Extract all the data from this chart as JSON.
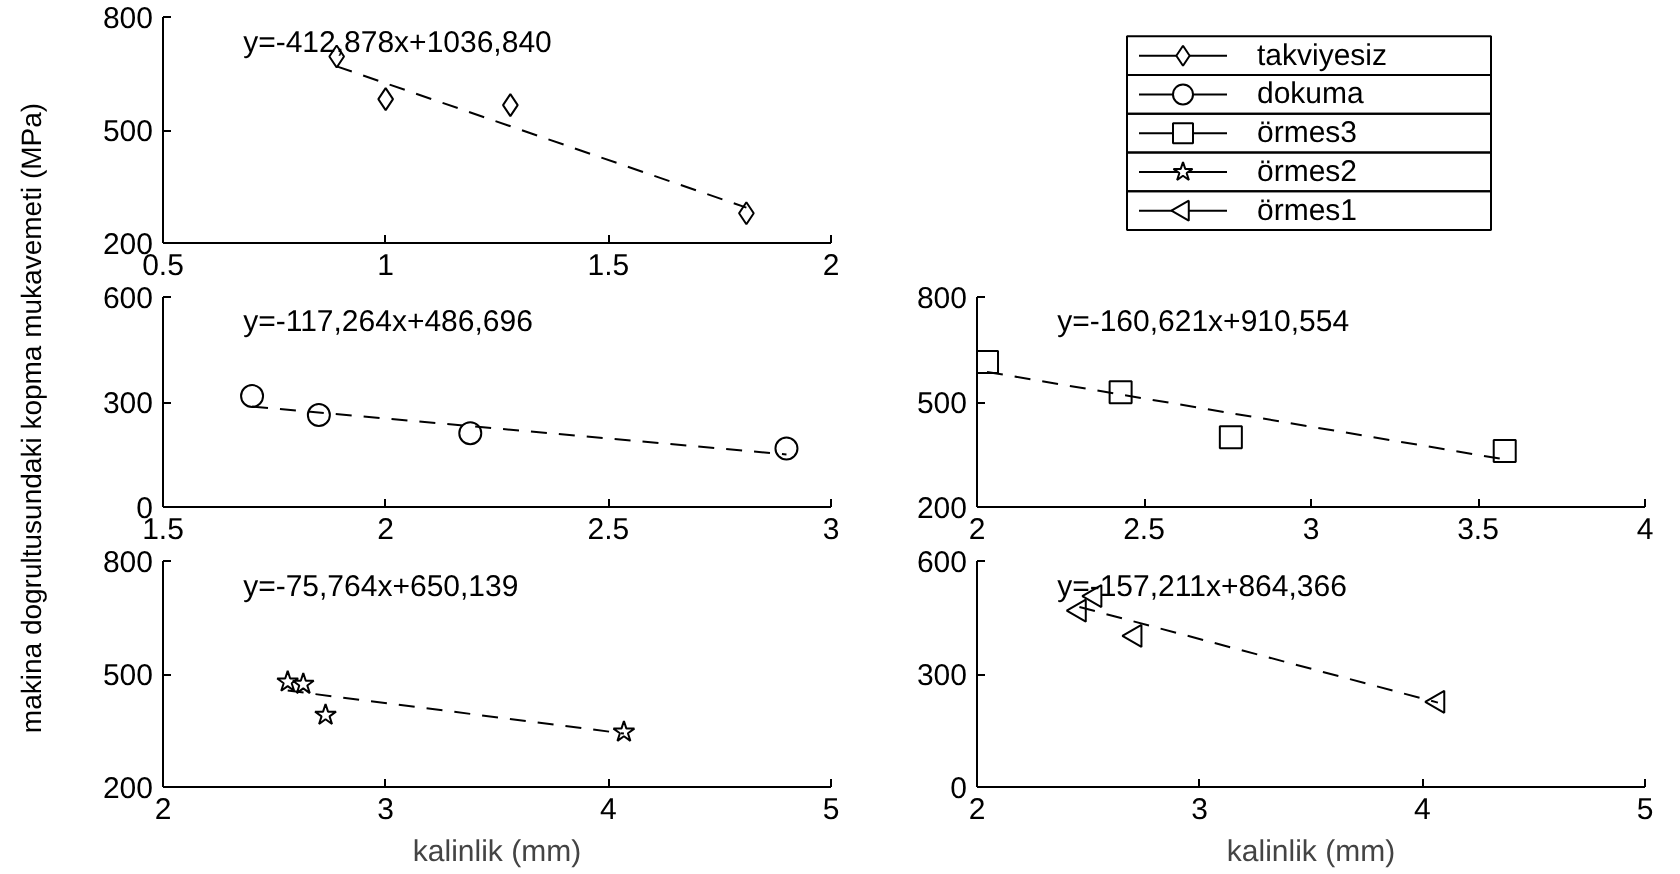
{
  "chart_data": [
    {
      "type": "scatter",
      "xlim": [
        0.5,
        2
      ],
      "ylim": [
        200,
        800
      ],
      "xticks": [
        0.5,
        1,
        1.5,
        2
      ],
      "yticks": [
        200,
        500,
        800
      ],
      "ylabel": "makina dogrultusundaki kopma mukavemeti (MPa)",
      "legend": "right",
      "annotations": [
        "y=-412,878x+1036,840"
      ],
      "series": [
        {
          "name": "takviyesiz",
          "color": "#000000",
          "marker": "diamond",
          "x": [
            0.89,
            1.0,
            1.28,
            1.81
          ],
          "values": [
            695,
            582,
            566,
            279
          ]
        },
        {
          "type": "line",
          "color": "#000000",
          "line_style": "dashed",
          "marker": "none",
          "x": [
            0.89,
            1.81
          ],
          "values": [
            669,
            294
          ]
        }
      ]
    },
    {
      "type": "scatter",
      "xlim": [
        1.5,
        3
      ],
      "ylim": [
        0,
        600
      ],
      "xticks": [
        1.5,
        2,
        2.5,
        3
      ],
      "yticks": [
        0,
        300,
        600
      ],
      "annotations": [
        "y=-117,264x+486,696"
      ],
      "series": [
        {
          "name": "dokuma",
          "color": "#000000",
          "marker": "circle",
          "x": [
            1.7,
            1.85,
            2.19,
            2.9
          ],
          "values": [
            317,
            263,
            211,
            167
          ]
        },
        {
          "type": "line",
          "color": "#000000",
          "line_style": "dashed",
          "marker": "none",
          "x": [
            1.7,
            2.9
          ],
          "values": [
            287,
            150
          ]
        }
      ]
    },
    {
      "type": "scatter",
      "xlim": [
        2,
        4
      ],
      "ylim": [
        200,
        800
      ],
      "xticks": [
        2,
        2.5,
        3,
        3.5,
        4
      ],
      "yticks": [
        200,
        500,
        800
      ],
      "annotations": [
        "y=-160,621x+910,554"
      ],
      "series": [
        {
          "name": "örmes3",
          "color": "#000000",
          "marker": "square",
          "x": [
            2.03,
            2.43,
            2.76,
            3.58
          ],
          "values": [
            614,
            528,
            399,
            360
          ]
        },
        {
          "type": "line",
          "color": "#000000",
          "line_style": "dashed",
          "marker": "none",
          "x": [
            2.03,
            3.58
          ],
          "values": [
            586,
            336
          ]
        }
      ]
    },
    {
      "type": "scatter",
      "xlim": [
        2,
        5
      ],
      "ylim": [
        200,
        800
      ],
      "xticks": [
        2,
        3,
        4,
        5
      ],
      "yticks": [
        200,
        500,
        800
      ],
      "xlabel": "kalinlik (mm)",
      "annotations": [
        "y=-75,764x+650,139"
      ],
      "series": [
        {
          "name": "örmes2",
          "color": "#000000",
          "marker": "star",
          "x": [
            2.56,
            2.63,
            2.73,
            4.07
          ],
          "values": [
            479,
            473,
            391,
            346
          ]
        },
        {
          "type": "line",
          "color": "#000000",
          "line_style": "dashed",
          "marker": "none",
          "x": [
            2.56,
            4.07
          ],
          "values": [
            456,
            342
          ]
        }
      ]
    },
    {
      "type": "scatter",
      "xlim": [
        2,
        5
      ],
      "ylim": [
        0,
        600
      ],
      "xticks": [
        2,
        3,
        4,
        5
      ],
      "yticks": [
        0,
        300,
        600
      ],
      "xlabel": "kalinlik (mm)",
      "annotations": [
        "y=-157,211x+864,366"
      ],
      "series": [
        {
          "name": "örmes1",
          "color": "#000000",
          "marker": "triangle",
          "x": [
            2.53,
            2.46,
            2.71,
            4.07
          ],
          "values": [
            507,
            468,
            401,
            226
          ]
        },
        {
          "type": "line",
          "color": "#000000",
          "line_style": "dashed",
          "marker": "none",
          "x": [
            2.46,
            4.07
          ],
          "values": [
            478,
            224
          ]
        }
      ]
    }
  ]
}
